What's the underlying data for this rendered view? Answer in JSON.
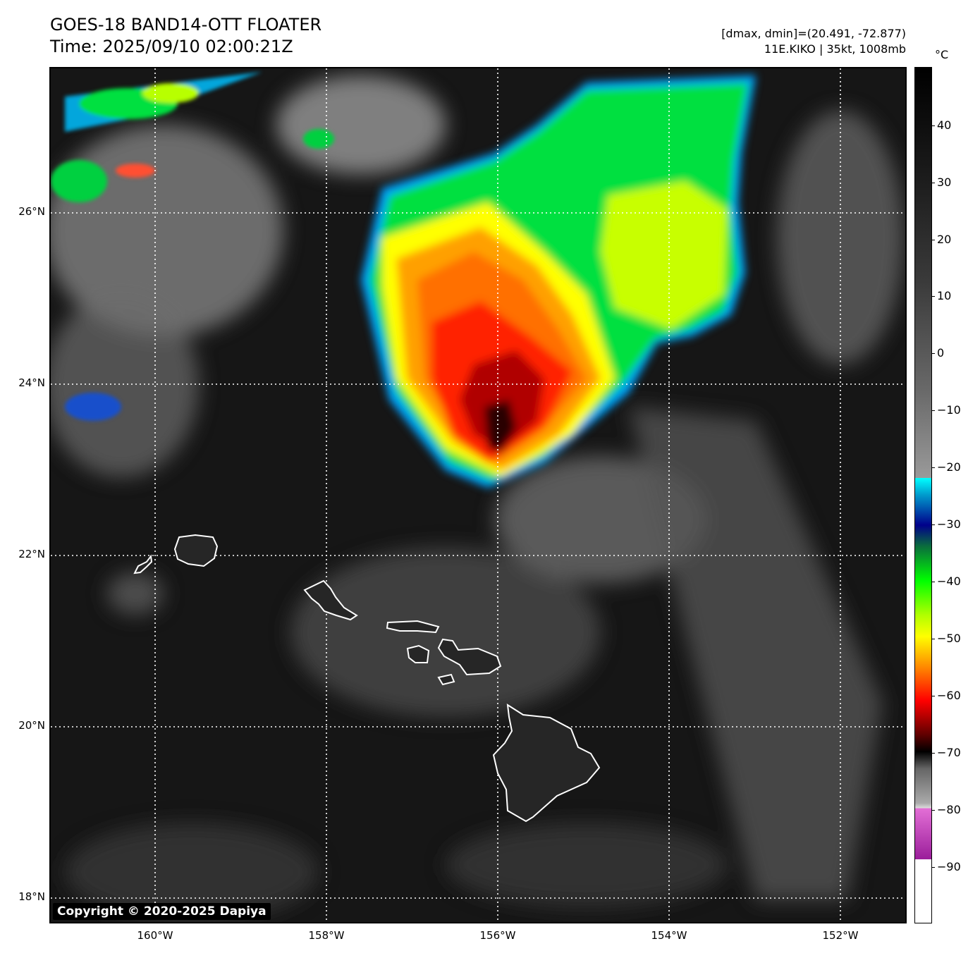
{
  "header": {
    "title": "GOES-18 BAND14-OTT FLOATER",
    "time": "Time: 2025/09/10 02:00:21Z",
    "dminmax": "[dmax, dmin]=(20.491, -72.877)",
    "storm": "11E.KIKO | 35kt, 1008mb"
  },
  "copyright": "Copyright © 2020-2025 Dapiya",
  "map": {
    "lat_labels": [
      "26°N",
      "24°N",
      "22°N",
      "20°N",
      "18°N"
    ],
    "lon_labels": [
      "160°W",
      "158°W",
      "156°W",
      "154°W",
      "152°W"
    ],
    "extent": {
      "lon_min": -161.2,
      "lon_max": -151.2,
      "lat_min": 17.7,
      "lat_max": 27.7
    },
    "features": [
      "hawaiian-islands",
      "tropical-storm-kiko-cloud-mass"
    ]
  },
  "colorbar": {
    "unit": "°C",
    "ticks": [
      "40",
      "30",
      "20",
      "10",
      "0",
      "−10",
      "−20",
      "−30",
      "−40",
      "−50",
      "−60",
      "−70",
      "−80",
      "−90"
    ],
    "range": [
      -100,
      50
    ],
    "colors": {
      "white": "#ffffff",
      "purple": "#9a1e9a",
      "pink": "#e36fd6",
      "black": "#000000",
      "red": "#ff0000",
      "orange": "#ff8c00",
      "yellow": "#ffff00",
      "green": "#00ff00",
      "dark-green": "#0a6e3c",
      "navy": "#00008b",
      "cyan": "#00ffff",
      "gray": "#b0b0b0"
    }
  }
}
